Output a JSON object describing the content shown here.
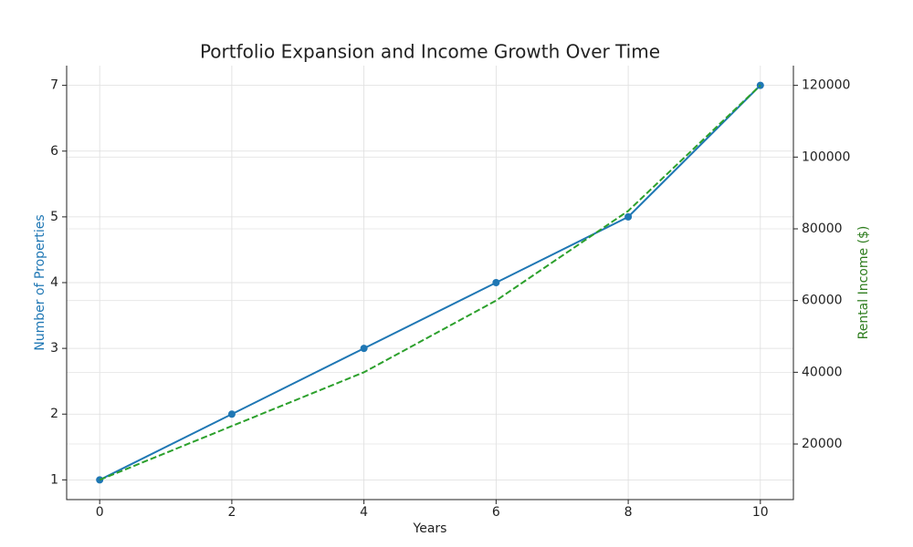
{
  "chart_data": {
    "type": "line",
    "title": "Portfolio Expansion and Income Growth Over Time",
    "xlabel": "Years",
    "ylabel": "Number of Properties",
    "y2label": "Rental Income ($)",
    "x": [
      0,
      2,
      4,
      6,
      8,
      10
    ],
    "series": [
      {
        "name": "Number of Properties",
        "color": "#1f77b4",
        "marker": "o",
        "linestyle": "solid",
        "axis": "y",
        "values": [
          1,
          2,
          3,
          4,
          5,
          7
        ]
      },
      {
        "name": "Rental Income ($)",
        "color": "#2ca02c",
        "marker": "none",
        "linestyle": "dashed",
        "axis": "y2",
        "values": [
          10000,
          25000,
          40000,
          60000,
          85000,
          120000
        ]
      }
    ],
    "xlim": [
      -0.5,
      10.5
    ],
    "xticks": [
      0,
      2,
      4,
      6,
      8,
      10
    ],
    "ylim": [
      0.7,
      7.3
    ],
    "yticks": [
      1,
      2,
      3,
      4,
      5,
      6,
      7
    ],
    "y2lim": [
      4500,
      125500
    ],
    "y2ticks": [
      20000,
      40000,
      60000,
      80000,
      100000,
      120000
    ],
    "grid": true,
    "ylabel_color": "#1f77b4",
    "y2label_color": "#2e7d1e"
  }
}
